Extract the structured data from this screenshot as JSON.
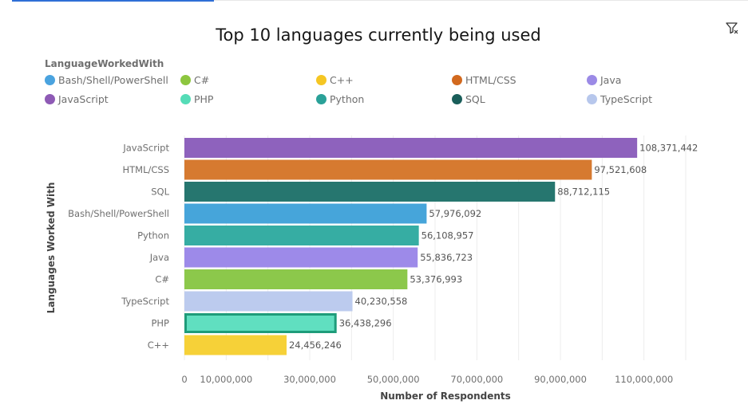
{
  "toolbar": {
    "filter_icon": "filter-icon"
  },
  "legend": {
    "title": "LanguageWorkedWith",
    "items": [
      {
        "label": "Bash/Shell/PowerShell",
        "color": "#4aa3df"
      },
      {
        "label": "C#",
        "color": "#8dc63f"
      },
      {
        "label": "C++",
        "color": "#f5c623"
      },
      {
        "label": "HTML/CSS",
        "color": "#d2691e"
      },
      {
        "label": "Java",
        "color": "#9b8ae6"
      },
      {
        "label": "JavaScript",
        "color": "#8e5ab5"
      },
      {
        "label": "PHP",
        "color": "#55dcb7"
      },
      {
        "label": "Python",
        "color": "#2aa198"
      },
      {
        "label": "SQL",
        "color": "#1a5e5a"
      },
      {
        "label": "TypeScript",
        "color": "#b7c7ec"
      }
    ]
  },
  "chart_data": {
    "type": "bar",
    "orientation": "horizontal",
    "title": "Top 10 languages currently being used",
    "xlabel": "Number of Respondents",
    "ylabel": "Languages Worked With",
    "xlim": [
      0,
      120000000
    ],
    "x_ticks": [
      0,
      10000000,
      30000000,
      50000000,
      70000000,
      90000000,
      110000000
    ],
    "x_tick_labels": [
      "0",
      "10,000,000",
      "30,000,000",
      "50,000,000",
      "70,000,000",
      "90,000,000",
      "110,000,000"
    ],
    "grid": true,
    "legend_position": "top",
    "categories": [
      "JavaScript",
      "HTML/CSS",
      "SQL",
      "Bash/Shell/PowerShell",
      "Python",
      "Java",
      "C#",
      "TypeScript",
      "PHP",
      "C++"
    ],
    "values": [
      108371442,
      97521608,
      88712115,
      57976092,
      56108957,
      55836723,
      53376993,
      40230558,
      36438296,
      24456246
    ],
    "value_labels": [
      "108,371,442",
      "97,521,608",
      "88,712,115",
      "57,976,092",
      "56,108,957",
      "55,836,723",
      "53,376,993",
      "40,230,558",
      "36,438,296",
      "24,456,246"
    ],
    "colors": [
      "#8e62bd",
      "#d67a30",
      "#26766f",
      "#46a5da",
      "#36ada3",
      "#9d8ae9",
      "#8cc84b",
      "#bccbee",
      "#60dfc0",
      "#f6d138"
    ],
    "highlighted": "PHP",
    "highlight_color": "#1e9c7a"
  }
}
